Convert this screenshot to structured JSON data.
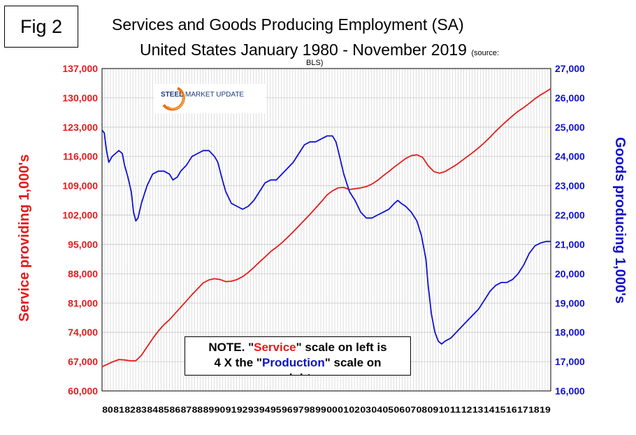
{
  "figure_label": "Fig 2",
  "title_line1": "Services and Goods Producing Employment (SA)",
  "title_line2": "United States January 1980 - November 2019",
  "source_part1": "(source:",
  "source_part2": "BLS)",
  "logo": {
    "bold": "STEEL",
    "rest": " MARKET UPDATE"
  },
  "note": {
    "l1a": "NOTE. \"",
    "l1b": "Service",
    "l1c": "\" scale on left  is",
    "l2a": "4 X the \"",
    "l2b": "Production",
    "l2c": "\" scale on",
    "l3": "right"
  },
  "chart_data": {
    "type": "line",
    "ylabel_left": "Service providing 1,000's",
    "ylabel_right": "Goods producing 1,000's",
    "y_left": {
      "min": 60000,
      "max": 137000,
      "ticks": [
        "60,000",
        "67,000",
        "74,000",
        "81,000",
        "88,000",
        "95,000",
        "102,000",
        "109,000",
        "116,000",
        "123,000",
        "130,000",
        "137,000"
      ]
    },
    "y_right": {
      "min": 16000,
      "max": 27000,
      "ticks": [
        "16,000",
        "17,000",
        "18,000",
        "19,000",
        "20,000",
        "21,000",
        "22,000",
        "23,000",
        "24,000",
        "25,000",
        "26,000",
        "27,000"
      ]
    },
    "x_ticks": [
      "80",
      "81",
      "82",
      "83",
      "84",
      "85",
      "86",
      "87",
      "88",
      "89",
      "90",
      "91",
      "92",
      "93",
      "94",
      "95",
      "96",
      "97",
      "98",
      "99",
      "00",
      "01",
      "02",
      "03",
      "04",
      "05",
      "06",
      "07",
      "08",
      "09",
      "10",
      "11",
      "12",
      "13",
      "14",
      "15",
      "16",
      "17",
      "18",
      "19"
    ],
    "x_range": [
      1980.0,
      2019.9
    ],
    "grid": true,
    "colors": {
      "service": "#e31c1c",
      "goods": "#1010d0",
      "grid": "#c8c8c8"
    },
    "series": [
      {
        "name": "Service",
        "axis": "left",
        "points": [
          [
            1980.0,
            65800
          ],
          [
            1980.5,
            66400
          ],
          [
            1981.0,
            67000
          ],
          [
            1981.5,
            67500
          ],
          [
            1982.0,
            67400
          ],
          [
            1982.5,
            67200
          ],
          [
            1983.0,
            67200
          ],
          [
            1983.5,
            68500
          ],
          [
            1984.0,
            70500
          ],
          [
            1984.5,
            72500
          ],
          [
            1985.0,
            74300
          ],
          [
            1985.5,
            75800
          ],
          [
            1986.0,
            77000
          ],
          [
            1986.5,
            78500
          ],
          [
            1987.0,
            80000
          ],
          [
            1987.5,
            81500
          ],
          [
            1988.0,
            83000
          ],
          [
            1988.5,
            84400
          ],
          [
            1989.0,
            85800
          ],
          [
            1989.5,
            86500
          ],
          [
            1990.0,
            86800
          ],
          [
            1990.5,
            86600
          ],
          [
            1991.0,
            86100
          ],
          [
            1991.5,
            86200
          ],
          [
            1992.0,
            86600
          ],
          [
            1992.5,
            87300
          ],
          [
            1993.0,
            88300
          ],
          [
            1993.5,
            89500
          ],
          [
            1994.0,
            90800
          ],
          [
            1994.5,
            92000
          ],
          [
            1995.0,
            93300
          ],
          [
            1995.5,
            94300
          ],
          [
            1996.0,
            95400
          ],
          [
            1996.5,
            96700
          ],
          [
            1997.0,
            98000
          ],
          [
            1997.5,
            99400
          ],
          [
            1998.0,
            100800
          ],
          [
            1998.5,
            102200
          ],
          [
            1999.0,
            103700
          ],
          [
            1999.5,
            105200
          ],
          [
            2000.0,
            106800
          ],
          [
            2000.5,
            107800
          ],
          [
            2001.0,
            108500
          ],
          [
            2001.5,
            108600
          ],
          [
            2002.0,
            108100
          ],
          [
            2002.5,
            108300
          ],
          [
            2003.0,
            108500
          ],
          [
            2003.5,
            108800
          ],
          [
            2004.0,
            109400
          ],
          [
            2004.5,
            110300
          ],
          [
            2005.0,
            111400
          ],
          [
            2005.5,
            112400
          ],
          [
            2006.0,
            113500
          ],
          [
            2006.5,
            114500
          ],
          [
            2007.0,
            115500
          ],
          [
            2007.5,
            116200
          ],
          [
            2008.0,
            116400
          ],
          [
            2008.5,
            115800
          ],
          [
            2009.0,
            113800
          ],
          [
            2009.5,
            112400
          ],
          [
            2010.0,
            112000
          ],
          [
            2010.5,
            112400
          ],
          [
            2011.0,
            113200
          ],
          [
            2011.5,
            114000
          ],
          [
            2012.0,
            115000
          ],
          [
            2012.5,
            116000
          ],
          [
            2013.0,
            117000
          ],
          [
            2013.5,
            118100
          ],
          [
            2014.0,
            119300
          ],
          [
            2014.5,
            120600
          ],
          [
            2015.0,
            122000
          ],
          [
            2015.5,
            123300
          ],
          [
            2016.0,
            124500
          ],
          [
            2016.5,
            125700
          ],
          [
            2017.0,
            126800
          ],
          [
            2017.5,
            127700
          ],
          [
            2018.0,
            128700
          ],
          [
            2018.5,
            129800
          ],
          [
            2019.0,
            130700
          ],
          [
            2019.5,
            131500
          ],
          [
            2019.9,
            132200
          ]
        ]
      },
      {
        "name": "Production",
        "axis": "right",
        "points": [
          [
            1980.0,
            24900
          ],
          [
            1980.2,
            24800
          ],
          [
            1980.4,
            24200
          ],
          [
            1980.6,
            23800
          ],
          [
            1980.9,
            24000
          ],
          [
            1981.2,
            24100
          ],
          [
            1981.5,
            24200
          ],
          [
            1981.8,
            24100
          ],
          [
            1982.0,
            23700
          ],
          [
            1982.3,
            23300
          ],
          [
            1982.6,
            22800
          ],
          [
            1982.8,
            22100
          ],
          [
            1983.0,
            21800
          ],
          [
            1983.2,
            21900
          ],
          [
            1983.5,
            22400
          ],
          [
            1984.0,
            23000
          ],
          [
            1984.5,
            23400
          ],
          [
            1985.0,
            23500
          ],
          [
            1985.5,
            23500
          ],
          [
            1986.0,
            23400
          ],
          [
            1986.3,
            23200
          ],
          [
            1986.7,
            23300
          ],
          [
            1987.0,
            23500
          ],
          [
            1987.5,
            23700
          ],
          [
            1988.0,
            24000
          ],
          [
            1988.5,
            24100
          ],
          [
            1989.0,
            24200
          ],
          [
            1989.5,
            24200
          ],
          [
            1990.0,
            24000
          ],
          [
            1990.3,
            23800
          ],
          [
            1990.7,
            23200
          ],
          [
            1991.0,
            22800
          ],
          [
            1991.5,
            22400
          ],
          [
            1992.0,
            22300
          ],
          [
            1992.5,
            22200
          ],
          [
            1993.0,
            22300
          ],
          [
            1993.5,
            22500
          ],
          [
            1994.0,
            22800
          ],
          [
            1994.5,
            23100
          ],
          [
            1995.0,
            23200
          ],
          [
            1995.5,
            23200
          ],
          [
            1996.0,
            23400
          ],
          [
            1996.5,
            23600
          ],
          [
            1997.0,
            23800
          ],
          [
            1997.5,
            24100
          ],
          [
            1998.0,
            24400
          ],
          [
            1998.5,
            24500
          ],
          [
            1999.0,
            24500
          ],
          [
            1999.5,
            24600
          ],
          [
            2000.0,
            24700
          ],
          [
            2000.5,
            24700
          ],
          [
            2000.8,
            24500
          ],
          [
            2001.0,
            24200
          ],
          [
            2001.5,
            23400
          ],
          [
            2002.0,
            22800
          ],
          [
            2002.5,
            22500
          ],
          [
            2003.0,
            22100
          ],
          [
            2003.5,
            21900
          ],
          [
            2004.0,
            21900
          ],
          [
            2004.5,
            22000
          ],
          [
            2005.0,
            22100
          ],
          [
            2005.5,
            22200
          ],
          [
            2006.0,
            22400
          ],
          [
            2006.3,
            22500
          ],
          [
            2006.6,
            22400
          ],
          [
            2007.0,
            22300
          ],
          [
            2007.5,
            22100
          ],
          [
            2008.0,
            21800
          ],
          [
            2008.4,
            21300
          ],
          [
            2008.8,
            20500
          ],
          [
            2009.0,
            19600
          ],
          [
            2009.3,
            18600
          ],
          [
            2009.6,
            18000
          ],
          [
            2009.9,
            17700
          ],
          [
            2010.2,
            17600
          ],
          [
            2010.5,
            17700
          ],
          [
            2011.0,
            17800
          ],
          [
            2011.5,
            18000
          ],
          [
            2012.0,
            18200
          ],
          [
            2012.5,
            18400
          ],
          [
            2013.0,
            18600
          ],
          [
            2013.5,
            18800
          ],
          [
            2014.0,
            19100
          ],
          [
            2014.5,
            19400
          ],
          [
            2015.0,
            19600
          ],
          [
            2015.5,
            19700
          ],
          [
            2016.0,
            19700
          ],
          [
            2016.5,
            19800
          ],
          [
            2017.0,
            20000
          ],
          [
            2017.5,
            20300
          ],
          [
            2018.0,
            20700
          ],
          [
            2018.5,
            20950
          ],
          [
            2019.0,
            21050
          ],
          [
            2019.5,
            21100
          ],
          [
            2019.9,
            21100
          ]
        ]
      }
    ]
  }
}
